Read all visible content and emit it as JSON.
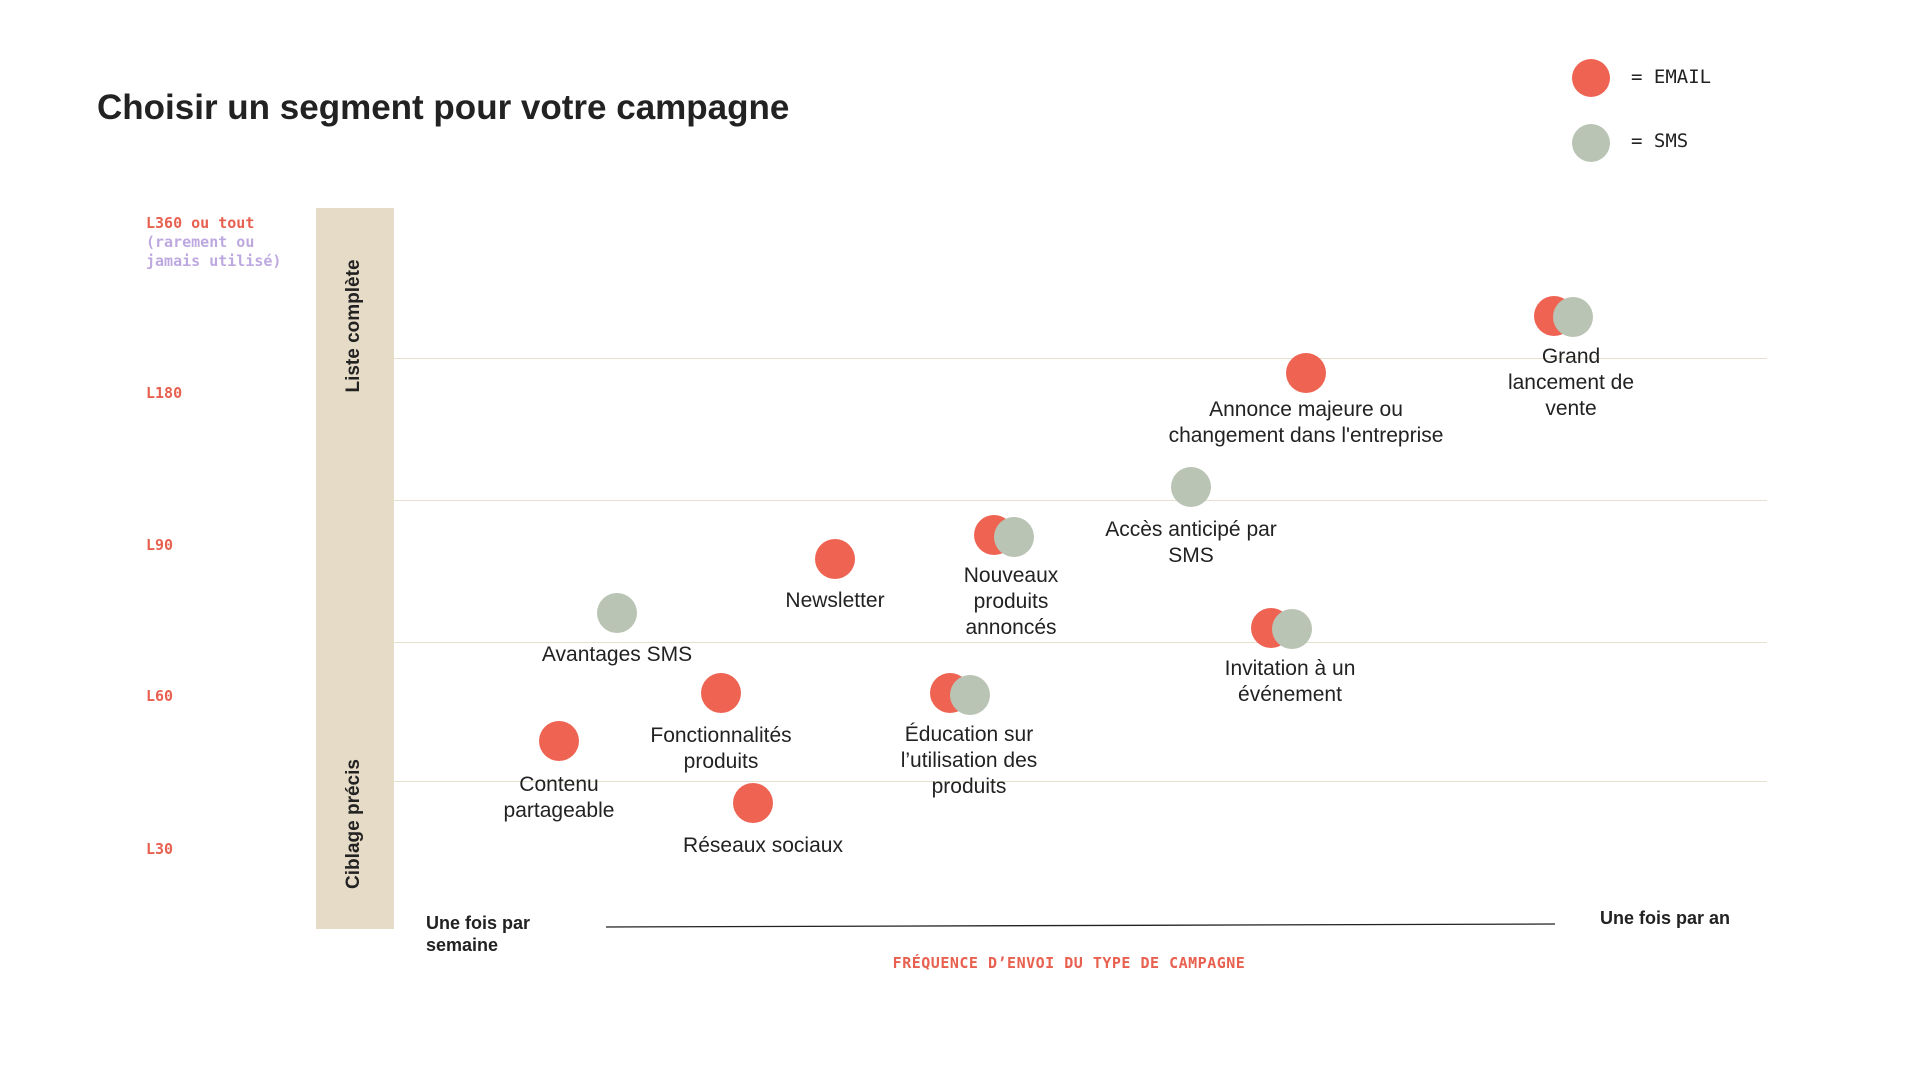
{
  "chart_data": {
    "type": "scatter",
    "title": "Choisir un segment pour votre campagne",
    "xlabel": "FRÉQUENCE D’ENVOI DU TYPE DE CAMPAGNE",
    "x_axis_ends": {
      "left": "Une fois par semaine",
      "right": "Une fois par an"
    },
    "y_tick_labels": [
      {
        "label": "L360 ou tout",
        "sub": "(rarement ou jamais utilisé)"
      },
      {
        "label": "L180"
      },
      {
        "label": "L90"
      },
      {
        "label": "L60"
      },
      {
        "label": "L30"
      }
    ],
    "y_bands": {
      "top": "Liste complète",
      "bottom": "Ciblage précis"
    },
    "legend": [
      {
        "channel": "email",
        "label": "= EMAIL",
        "color": "#EE6352"
      },
      {
        "channel": "sms",
        "label": "= SMS",
        "color": "#B9C4B4"
      }
    ],
    "legend_placement": "top-right",
    "grid": true,
    "points": [
      {
        "id": "contenu",
        "label": "Contenu partageable",
        "channels": [
          "email"
        ]
      },
      {
        "id": "reseaux",
        "label": "Réseaux sociaux",
        "channels": [
          "email"
        ]
      },
      {
        "id": "fonctionnalites",
        "label": "Fonctionnalités produits",
        "channels": [
          "email"
        ]
      },
      {
        "id": "avantages",
        "label": "Avantages SMS",
        "channels": [
          "sms"
        ]
      },
      {
        "id": "newsletter",
        "label": "Newsletter",
        "channels": [
          "email"
        ]
      },
      {
        "id": "nouveaux",
        "label": "Nouveaux produits annoncés",
        "channels": [
          "email",
          "sms"
        ]
      },
      {
        "id": "education",
        "label": "Éducation sur l’utilisation des produits",
        "channels": [
          "email",
          "sms"
        ]
      },
      {
        "id": "acces",
        "label": "Accès anticipé par SMS",
        "channels": [
          "sms"
        ]
      },
      {
        "id": "invitation",
        "label": "Invitation à un événement",
        "channels": [
          "email",
          "sms"
        ]
      },
      {
        "id": "annonce",
        "label": "Annonce majeure ou changement dans l'entreprise",
        "channels": [
          "email"
        ]
      },
      {
        "id": "lancement",
        "label": "Grand lancement de vente",
        "channels": [
          "email",
          "sms"
        ]
      }
    ]
  }
}
